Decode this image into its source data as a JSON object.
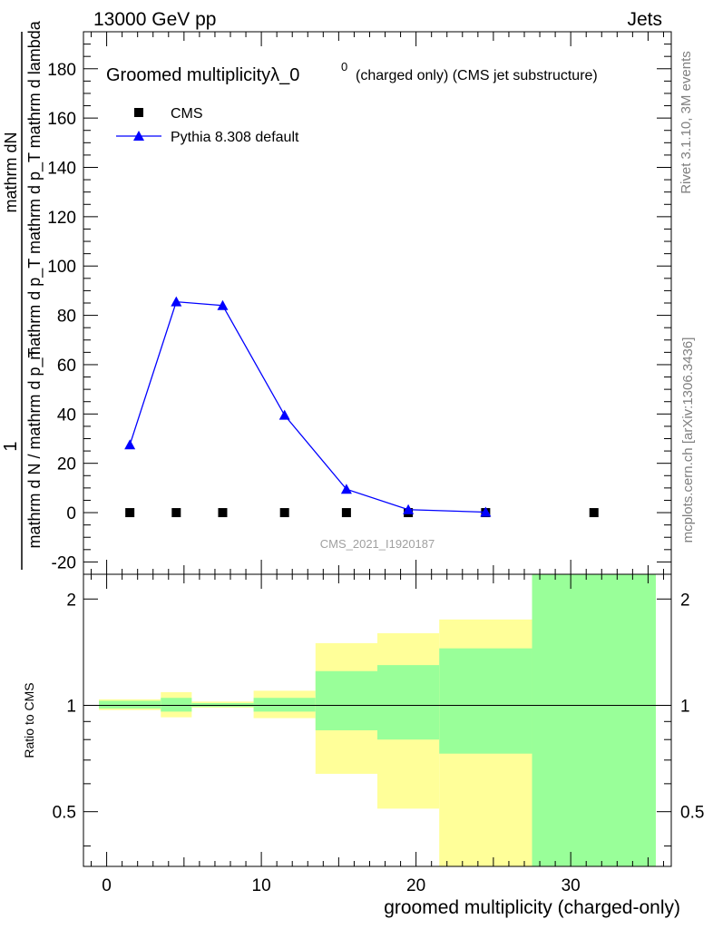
{
  "header": {
    "left": "13000 GeV pp",
    "right": "Jets"
  },
  "side_text": {
    "top": "Rivet 3.1.10,  3M events",
    "bottom": "mcplots.cern.ch [arXiv:1306.3436]"
  },
  "watermark": "CMS_2021_I1920187",
  "colors": {
    "mc": "#0000ff",
    "data": "#000000",
    "band_inner": "#99ff99",
    "band_outer": "#ffff99"
  },
  "chart_data": [
    {
      "type": "scatter",
      "title": "Groomed multiplicityλ_0",
      "title_sup": "0",
      "title_suffix": "(charged only) (CMS jet substructure)",
      "ylabel_top": "1",
      "ylabel_top_num": "mathrm dN",
      "ylabel_top_den": "mathrm d p_T mathrm d p_T mathrm d lambda",
      "ylabel_main": "mathrm d N / mathrm d p_T",
      "ylim": [
        -25,
        195
      ],
      "xlim": [
        -1.5,
        36.5
      ],
      "yticks": [
        -20,
        0,
        20,
        40,
        60,
        80,
        100,
        120,
        140,
        160,
        180
      ],
      "legend_position": "top-left",
      "series": [
        {
          "name": "CMS",
          "marker": "square",
          "x": [
            1.5,
            4.5,
            7.5,
            11.5,
            15.5,
            19.5,
            24.5,
            31.5
          ],
          "y": [
            0,
            0,
            0,
            0,
            0,
            0,
            0,
            0
          ]
        },
        {
          "name": "Pythia 8.308 default",
          "marker": "triangle",
          "x": [
            1.5,
            4.5,
            7.5,
            11.5,
            15.5,
            19.5,
            24.5
          ],
          "y": [
            27.5,
            85.5,
            84,
            39.5,
            9.5,
            1.2,
            0.2
          ]
        }
      ]
    },
    {
      "type": "area",
      "ylabel": "Ratio to CMS",
      "xlabel": "groomed multiplicity (charged-only)",
      "ylim": [
        0.35,
        2.35
      ],
      "xlim": [
        -1.5,
        36.5
      ],
      "yticks": [
        0.5,
        1,
        2
      ],
      "xticks": [
        0,
        10,
        20,
        30
      ],
      "reference_line": 1,
      "bins": [
        {
          "x0": -0.5,
          "x1": 3.5,
          "inner": [
            0.98,
            1.03
          ],
          "outer": [
            0.97,
            1.04
          ]
        },
        {
          "x0": 3.5,
          "x1": 5.5,
          "inner": [
            0.96,
            1.05
          ],
          "outer": [
            0.925,
            1.09
          ]
        },
        {
          "x0": 5.5,
          "x1": 9.5,
          "inner": [
            0.99,
            1.015
          ],
          "outer": [
            0.985,
            1.025
          ]
        },
        {
          "x0": 9.5,
          "x1": 13.5,
          "inner": [
            0.96,
            1.05
          ],
          "outer": [
            0.92,
            1.1
          ]
        },
        {
          "x0": 13.5,
          "x1": 17.5,
          "inner": [
            0.85,
            1.25
          ],
          "outer": [
            0.64,
            1.5
          ]
        },
        {
          "x0": 17.5,
          "x1": 21.5,
          "inner": [
            0.8,
            1.3
          ],
          "outer": [
            0.51,
            1.6
          ]
        },
        {
          "x0": 21.5,
          "x1": 27.5,
          "inner": [
            0.73,
            1.45
          ],
          "outer": [
            0.35,
            1.75
          ]
        },
        {
          "x0": 27.5,
          "x1": 35.5,
          "inner": [
            0.35,
            2.35
          ],
          "outer": [
            0.35,
            2.35
          ]
        }
      ]
    }
  ]
}
